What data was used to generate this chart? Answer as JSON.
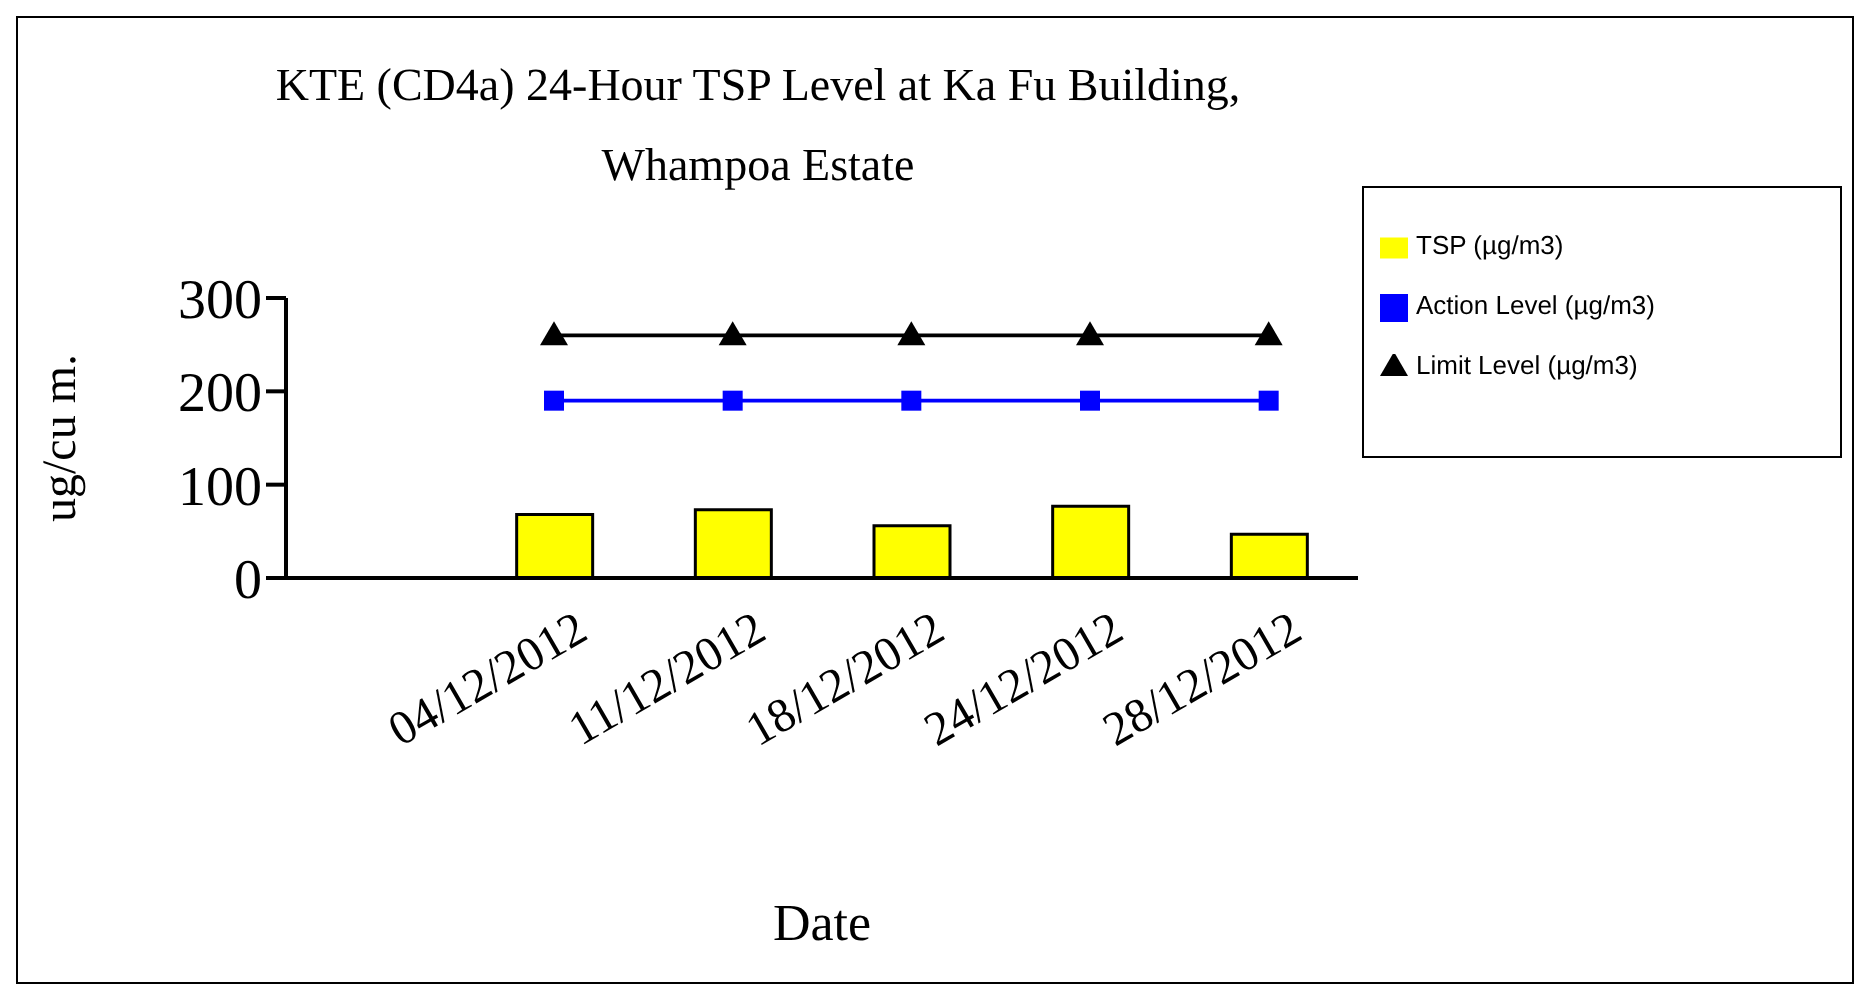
{
  "chart_data": {
    "type": "bar",
    "title": "KTE (CD4a) 24-Hour TSP Level at Ka Fu Building,\nWhampoa Estate",
    "xlabel": "Date",
    "ylabel": "ug/cu m.",
    "categories": [
      null,
      "04/12/2012",
      "11/12/2012",
      "18/12/2012",
      "24/12/2012",
      "28/12/2012"
    ],
    "series": [
      {
        "name": "TSP (µg/m3)",
        "color": "#ffff00",
        "values": [
          null,
          68,
          73,
          56,
          77,
          47
        ]
      },
      {
        "name": "Action Level (µg/m3)",
        "type": "line",
        "color": "#0000ff",
        "marker": "square",
        "values": [
          null,
          190,
          190,
          190,
          190,
          190
        ]
      },
      {
        "name": "Limit Level (µg/m3)",
        "type": "line",
        "color": "#000000",
        "marker": "triangle",
        "values": [
          null,
          260,
          260,
          260,
          260,
          260
        ]
      }
    ],
    "ylim": [
      0,
      300
    ],
    "yticks": [
      0,
      100,
      200,
      300
    ],
    "grid": false,
    "legend": "top right"
  }
}
